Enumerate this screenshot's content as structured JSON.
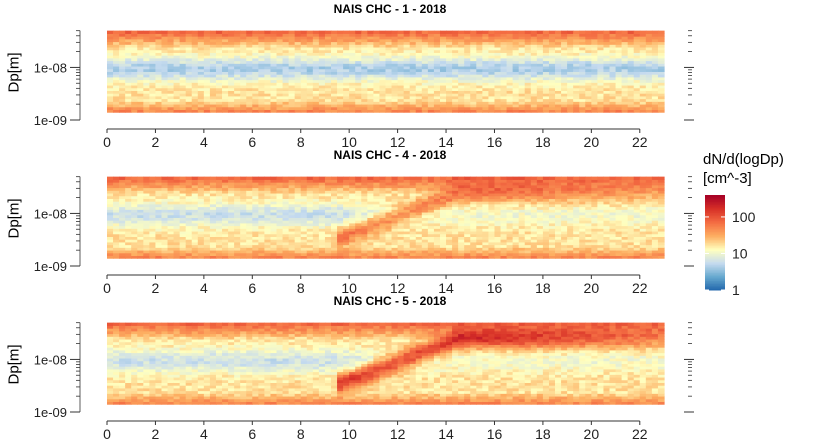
{
  "chart_data": {
    "type": "heatmap",
    "panels": [
      {
        "title": "NAIS CHC - 1 - 2018",
        "ylabel": "Dp[m]",
        "event": "none"
      },
      {
        "title": "NAIS CHC - 4 - 2018",
        "ylabel": "Dp[m]",
        "event": "weak"
      },
      {
        "title": "NAIS CHC - 5 - 2018",
        "ylabel": "Dp[m]",
        "event": "strong"
      }
    ],
    "x_ticks": [
      "0",
      "2",
      "4",
      "6",
      "8",
      "10",
      "12",
      "14",
      "16",
      "18",
      "20",
      "22"
    ],
    "x_range": [
      0,
      23
    ],
    "y_ticks": [
      "1e-09",
      "1e-08"
    ],
    "y_range_log10": [
      -9,
      -7.25
    ],
    "y_data_log10": [
      -8.85,
      -7.3
    ],
    "colorbar": {
      "title_line1": "dN/d(logDp)",
      "title_line2": "[cm^-3]",
      "ticks": [
        "1",
        "10",
        "100"
      ],
      "log10_range": [
        0,
        2.6
      ],
      "scale": "log",
      "colors": [
        "#2166ac",
        "#67a9cf",
        "#c6dbef",
        "#ffffbf",
        "#fdae61",
        "#f46d43",
        "#d73027",
        "#a50026"
      ]
    }
  }
}
